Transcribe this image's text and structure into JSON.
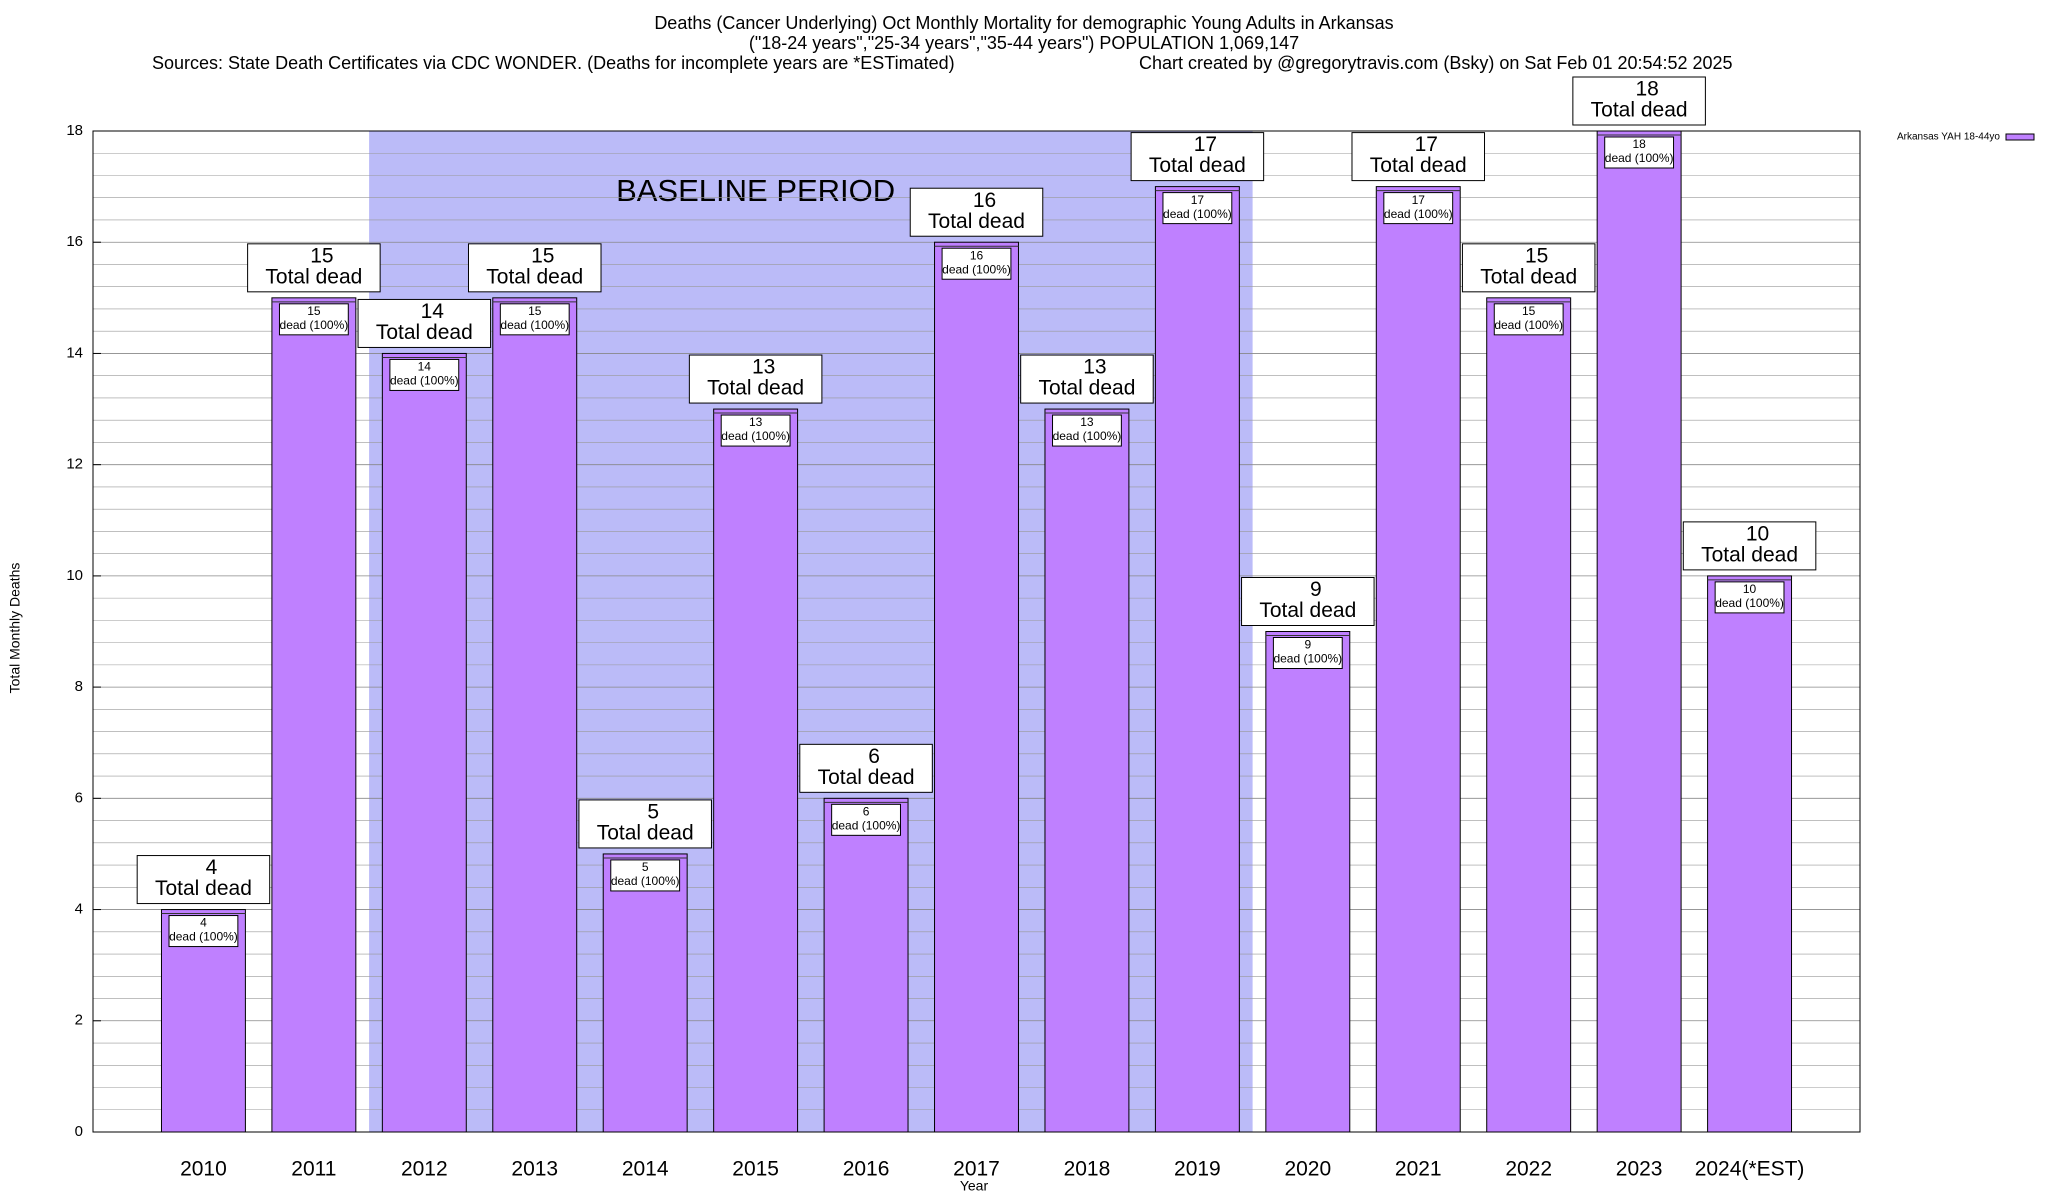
{
  "chart_data": {
    "type": "bar",
    "title_lines": [
      "Deaths (Cancer Underlying) Oct Monthly Mortality for demographic Young Adults in Arkansas",
      "(\"18-24 years\",\"25-34 years\",\"35-44 years\") POPULATION 1,069,147"
    ],
    "source": "Sources: State Death Certificates via CDC WONDER. (Deaths for incomplete years are *ESTimated)",
    "credit": "Chart created by @gregorytravis.com (Bsky) on Sat Feb 01 20:54:52 2025",
    "x_label": "Year",
    "y_label": "Total Monthly Deaths",
    "categories": [
      "2010",
      "2011",
      "2012",
      "2013",
      "2014",
      "2015",
      "2016",
      "2017",
      "2018",
      "2019",
      "2020",
      "2021",
      "2022",
      "2023",
      "2024(*EST)"
    ],
    "series": [
      {
        "name": "Arkansas YAH 18-44yo",
        "color": "#bf80ff",
        "values": [
          4,
          15,
          14,
          15,
          5,
          13,
          6,
          16,
          13,
          17,
          9,
          17,
          15,
          18,
          10
        ]
      }
    ],
    "total_label": "Total dead",
    "segment_label": "dead (100%)",
    "baseline": {
      "label": "BASELINE PERIOD",
      "start": "2012",
      "end": "2019",
      "color": "#bbbbf8"
    },
    "ylim": [
      0,
      18
    ],
    "yticks": [
      0,
      2,
      4,
      6,
      8,
      10,
      12,
      14,
      16,
      18
    ],
    "grid": true,
    "legend": "top-right"
  }
}
